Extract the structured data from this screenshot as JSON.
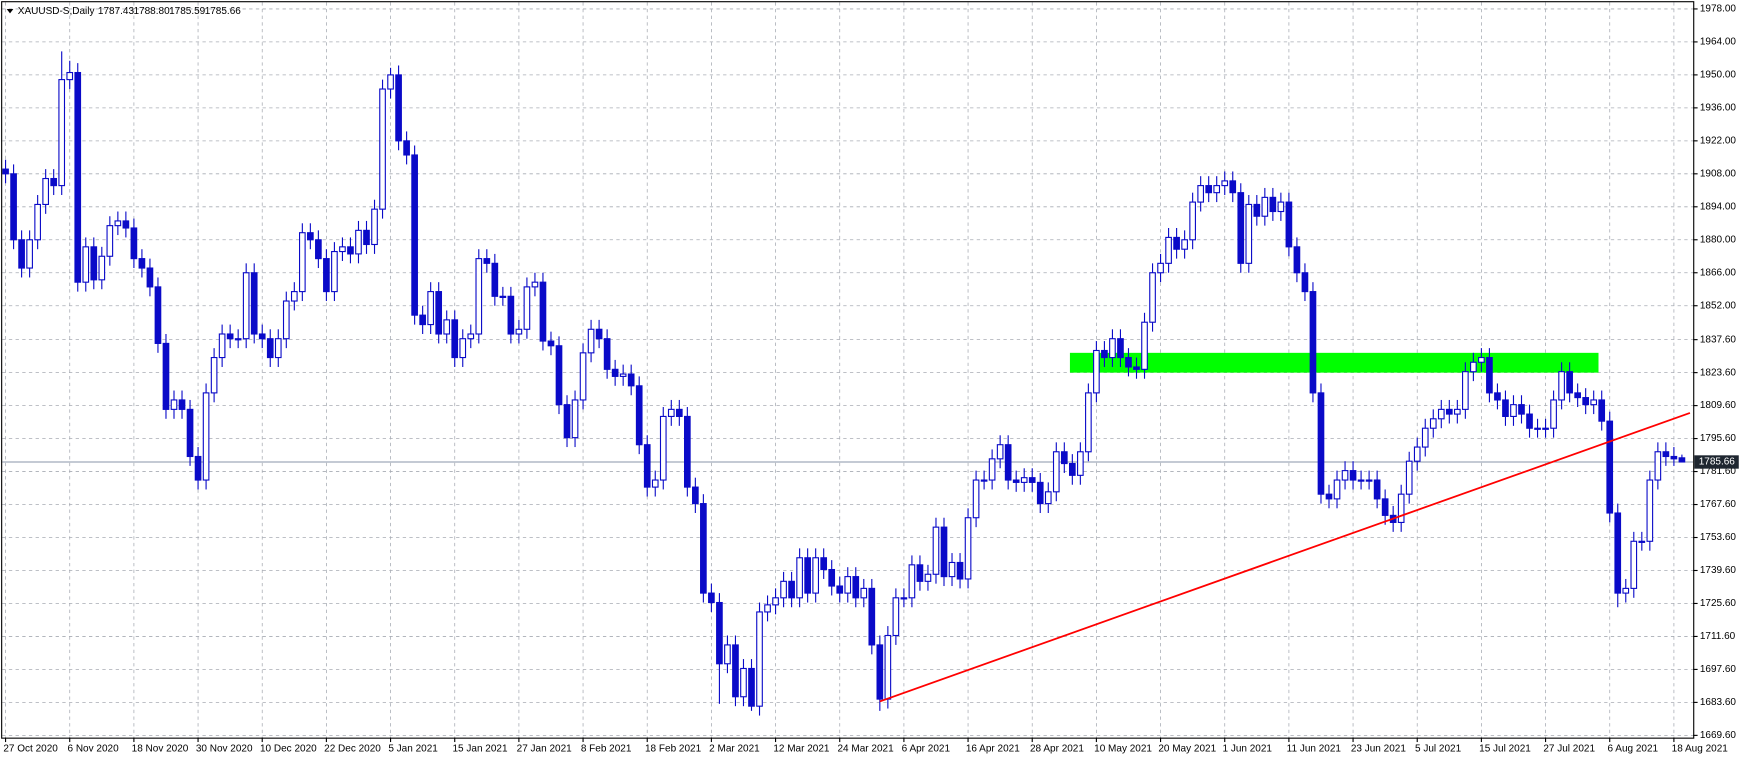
{
  "chart_data": {
    "type": "candlestick",
    "title": "XAUUSD-S,Daily",
    "header_values": [
      "1787.43",
      "1788.80",
      "1785.59",
      "1785.66"
    ],
    "color": "#0a0ac8",
    "up_fill": "#ffffff",
    "grid": true,
    "ylim": [
      1669.6,
      1978
    ],
    "yticks": [
      {
        "value": 1978,
        "label": "1978.00"
      },
      {
        "value": 1964,
        "label": "1964.00"
      },
      {
        "value": 1950,
        "label": "1950.00"
      },
      {
        "value": 1936,
        "label": "1936.00"
      },
      {
        "value": 1922,
        "label": "1922.00"
      },
      {
        "value": 1908,
        "label": "1908.00"
      },
      {
        "value": 1894,
        "label": "1894.00"
      },
      {
        "value": 1880,
        "label": "1880.00"
      },
      {
        "value": 1866,
        "label": "1866.00"
      },
      {
        "value": 1852,
        "label": "1852.00"
      },
      {
        "value": 1837.6,
        "label": "1837.60"
      },
      {
        "value": 1823.6,
        "label": "1823.60"
      },
      {
        "value": 1809.6,
        "label": "1809.60"
      },
      {
        "value": 1795.6,
        "label": "1795.60"
      },
      {
        "value": 1781.6,
        "label": "1781.60"
      },
      {
        "value": 1767.6,
        "label": "1767.60"
      },
      {
        "value": 1753.6,
        "label": "1753.60"
      },
      {
        "value": 1739.6,
        "label": "1739.60"
      },
      {
        "value": 1725.6,
        "label": "1725.60"
      },
      {
        "value": 1711.6,
        "label": "1711.60"
      },
      {
        "value": 1697.6,
        "label": "1697.60"
      },
      {
        "value": 1683.6,
        "label": "1683.60"
      },
      {
        "value": 1669.6,
        "label": "1669.60"
      }
    ],
    "categories": [
      "27 Oct 2020",
      null,
      null,
      null,
      null,
      null,
      null,
      null,
      "6 Nov 2020",
      null,
      null,
      null,
      null,
      null,
      null,
      null,
      "18 Nov 2020",
      null,
      null,
      null,
      null,
      null,
      null,
      null,
      "30 Nov 2020",
      null,
      null,
      null,
      null,
      null,
      null,
      null,
      "10 Dec 2020",
      null,
      null,
      null,
      null,
      null,
      null,
      null,
      "22 Dec 2020",
      null,
      null,
      null,
      null,
      null,
      null,
      null,
      "5 Jan 2021",
      null,
      null,
      null,
      null,
      null,
      null,
      null,
      "15 Jan 2021",
      null,
      null,
      null,
      null,
      null,
      null,
      null,
      "27 Jan 2021",
      null,
      null,
      null,
      null,
      null,
      null,
      null,
      "8 Feb 2021",
      null,
      null,
      null,
      null,
      null,
      null,
      null,
      "18 Feb 2021",
      null,
      null,
      null,
      null,
      null,
      null,
      null,
      "2 Mar 2021",
      null,
      null,
      null,
      null,
      null,
      null,
      null,
      "12 Mar 2021",
      null,
      null,
      null,
      null,
      null,
      null,
      null,
      "24 Mar 2021",
      null,
      null,
      null,
      null,
      null,
      null,
      null,
      "6 Apr 2021",
      null,
      null,
      null,
      null,
      null,
      null,
      null,
      "16 Apr 2021",
      null,
      null,
      null,
      null,
      null,
      null,
      null,
      "28 Apr 2021",
      null,
      null,
      null,
      null,
      null,
      null,
      null,
      "10 May 2021",
      null,
      null,
      null,
      null,
      null,
      null,
      null,
      "20 May 2021",
      null,
      null,
      null,
      null,
      null,
      null,
      null,
      "1 Jun 2021",
      null,
      null,
      null,
      null,
      null,
      null,
      null,
      "11 Jun 2021",
      null,
      null,
      null,
      null,
      null,
      null,
      null,
      "23 Jun 2021",
      null,
      null,
      null,
      null,
      null,
      null,
      null,
      "5 Jul 2021",
      null,
      null,
      null,
      null,
      null,
      null,
      null,
      "15 Jul 2021",
      null,
      null,
      null,
      null,
      null,
      null,
      null,
      "27 Jul 2021",
      null,
      null,
      null,
      null,
      null,
      null,
      null,
      "6 Aug 2021",
      null,
      null,
      null,
      null,
      null,
      null,
      null,
      "18 Aug 2021",
      null
    ],
    "open": [
      1910,
      1908,
      1880,
      1868,
      1880,
      1895,
      1906,
      1903,
      1948,
      1951,
      1862,
      1877,
      1863,
      1873,
      1886,
      1888,
      1885,
      1872,
      1868,
      1860,
      1836,
      1808,
      1812,
      1808,
      1788,
      1778,
      1815,
      1830,
      1840,
      1838,
      1838,
      1866,
      1840,
      1838,
      1830,
      1838,
      1854,
      1858,
      1883,
      1880,
      1872,
      1858,
      1875,
      1877,
      1874,
      1884,
      1878,
      1893,
      1944,
      1950,
      1922,
      1916,
      1848,
      1844,
      1858,
      1840,
      1846,
      1830,
      1838,
      1840,
      1872,
      1870,
      1856,
      1856,
      1840,
      1842,
      1860,
      1862,
      1837,
      1835,
      1810,
      1796,
      1812,
      1832,
      1842,
      1838,
      1825,
      1822,
      1823,
      1818,
      1793,
      1775,
      1778,
      1805,
      1808,
      1805,
      1775,
      1768,
      1730,
      1726,
      1700,
      1708,
      1686,
      1698,
      1682,
      1722,
      1725,
      1728,
      1735,
      1728,
      1745,
      1730,
      1745,
      1740,
      1733,
      1730,
      1737,
      1728,
      1732,
      1708,
      1685,
      1712,
      1728,
      1728,
      1742,
      1735,
      1738,
      1758,
      1737,
      1743,
      1736,
      1762,
      1778,
      1778,
      1787,
      1793,
      1778,
      1777,
      1779,
      1777,
      1768,
      1773,
      1790,
      1785,
      1780,
      1790,
      1815,
      1833,
      1830,
      1838,
      1830,
      1826,
      1825,
      1845,
      1866,
      1870,
      1881,
      1876,
      1880,
      1896,
      1903,
      1900,
      1903,
      1905,
      1900,
      1870,
      1895,
      1890,
      1898,
      1892,
      1896,
      1877,
      1866,
      1858,
      1815,
      1772,
      1770,
      1778,
      1782,
      1778,
      1778,
      1778,
      1770,
      1763,
      1760,
      1772,
      1786,
      1792,
      1800,
      1804,
      1808,
      1806,
      1808,
      1824,
      1828,
      1830,
      1815,
      1812,
      1805,
      1810,
      1806,
      1800,
      1800,
      1800,
      1812,
      1824,
      1815,
      1813,
      1810,
      1812,
      1803,
      1764,
      1730,
      1732,
      1752,
      1752,
      1778,
      1790,
      1788,
      1787.43
    ],
    "high": [
      1914,
      1912,
      1884,
      1884,
      1899,
      1910,
      1910,
      1960,
      1956,
      1955,
      1881,
      1881,
      1877,
      1890,
      1892,
      1892,
      1889,
      1876,
      1872,
      1864,
      1840,
      1816,
      1816,
      1812,
      1792,
      1819,
      1834,
      1844,
      1844,
      1842,
      1870,
      1870,
      1844,
      1842,
      1842,
      1858,
      1862,
      1887,
      1887,
      1884,
      1876,
      1879,
      1881,
      1881,
      1888,
      1888,
      1897,
      1948,
      1953,
      1954,
      1926,
      1920,
      1852,
      1862,
      1862,
      1850,
      1850,
      1842,
      1844,
      1876,
      1876,
      1874,
      1860,
      1860,
      1846,
      1864,
      1866,
      1866,
      1841,
      1839,
      1814,
      1816,
      1836,
      1846,
      1846,
      1842,
      1829,
      1827,
      1827,
      1822,
      1797,
      1782,
      1809,
      1812,
      1812,
      1809,
      1779,
      1772,
      1734,
      1730,
      1712,
      1712,
      1702,
      1702,
      1726,
      1729,
      1732,
      1739,
      1739,
      1749,
      1749,
      1749,
      1749,
      1744,
      1737,
      1741,
      1741,
      1736,
      1736,
      1712,
      1716,
      1732,
      1732,
      1746,
      1746,
      1742,
      1762,
      1762,
      1747,
      1747,
      1766,
      1782,
      1782,
      1791,
      1797,
      1797,
      1782,
      1783,
      1783,
      1781,
      1777,
      1794,
      1794,
      1789,
      1794,
      1819,
      1837,
      1837,
      1842,
      1842,
      1834,
      1830,
      1849,
      1870,
      1874,
      1885,
      1885,
      1884,
      1900,
      1907,
      1907,
      1907,
      1909,
      1909,
      1904,
      1899,
      1899,
      1902,
      1902,
      1900,
      1900,
      1881,
      1870,
      1862,
      1819,
      1776,
      1782,
      1786,
      1786,
      1782,
      1782,
      1782,
      1774,
      1767,
      1776,
      1790,
      1796,
      1804,
      1808,
      1812,
      1812,
      1812,
      1828,
      1832,
      1834,
      1834,
      1819,
      1816,
      1814,
      1814,
      1810,
      1804,
      1804,
      1816,
      1828,
      1828,
      1819,
      1817,
      1816,
      1816,
      1807,
      1768,
      1736,
      1756,
      1756,
      1782,
      1794,
      1794,
      1792,
      1788.8
    ],
    "low": [
      1904,
      1876,
      1864,
      1864,
      1876,
      1891,
      1899,
      1899,
      1944,
      1858,
      1858,
      1859,
      1859,
      1869,
      1882,
      1881,
      1868,
      1864,
      1856,
      1832,
      1804,
      1804,
      1804,
      1784,
      1774,
      1774,
      1811,
      1826,
      1834,
      1834,
      1834,
      1836,
      1834,
      1826,
      1826,
      1834,
      1850,
      1854,
      1876,
      1868,
      1854,
      1854,
      1871,
      1870,
      1870,
      1874,
      1874,
      1889,
      1940,
      1918,
      1912,
      1844,
      1840,
      1840,
      1836,
      1836,
      1826,
      1826,
      1834,
      1836,
      1866,
      1852,
      1852,
      1836,
      1836,
      1838,
      1856,
      1833,
      1831,
      1806,
      1792,
      1792,
      1808,
      1828,
      1834,
      1821,
      1818,
      1818,
      1814,
      1789,
      1771,
      1771,
      1774,
      1801,
      1801,
      1771,
      1764,
      1726,
      1722,
      1683,
      1696,
      1682,
      1682,
      1680,
      1678,
      1718,
      1721,
      1724,
      1724,
      1724,
      1726,
      1726,
      1736,
      1729,
      1726,
      1726,
      1724,
      1724,
      1704,
      1680,
      1681,
      1708,
      1724,
      1724,
      1731,
      1731,
      1734,
      1733,
      1733,
      1732,
      1732,
      1758,
      1774,
      1774,
      1783,
      1774,
      1773,
      1773,
      1773,
      1764,
      1764,
      1769,
      1781,
      1776,
      1776,
      1786,
      1811,
      1826,
      1826,
      1826,
      1822,
      1821,
      1821,
      1841,
      1862,
      1866,
      1872,
      1872,
      1876,
      1892,
      1896,
      1896,
      1899,
      1896,
      1866,
      1866,
      1886,
      1886,
      1888,
      1888,
      1873,
      1862,
      1854,
      1811,
      1768,
      1766,
      1766,
      1774,
      1774,
      1774,
      1774,
      1766,
      1759,
      1756,
      1756,
      1768,
      1782,
      1788,
      1796,
      1800,
      1802,
      1802,
      1804,
      1820,
      1824,
      1811,
      1808,
      1801,
      1801,
      1802,
      1796,
      1796,
      1796,
      1796,
      1808,
      1811,
      1809,
      1806,
      1806,
      1799,
      1760,
      1724,
      1726,
      1728,
      1748,
      1748,
      1774,
      1784,
      1784,
      1785.59
    ],
    "close": [
      1908,
      1880,
      1868,
      1880,
      1895,
      1906,
      1903,
      1948,
      1951,
      1862,
      1877,
      1863,
      1873,
      1886,
      1888,
      1885,
      1872,
      1868,
      1860,
      1836,
      1808,
      1812,
      1808,
      1788,
      1778,
      1815,
      1830,
      1840,
      1838,
      1838,
      1866,
      1840,
      1838,
      1830,
      1838,
      1854,
      1858,
      1883,
      1880,
      1872,
      1858,
      1875,
      1877,
      1874,
      1884,
      1878,
      1893,
      1944,
      1950,
      1922,
      1916,
      1848,
      1844,
      1858,
      1840,
      1846,
      1830,
      1838,
      1840,
      1872,
      1870,
      1856,
      1856,
      1840,
      1842,
      1860,
      1862,
      1837,
      1835,
      1810,
      1796,
      1812,
      1832,
      1842,
      1838,
      1825,
      1822,
      1823,
      1818,
      1793,
      1775,
      1778,
      1805,
      1808,
      1805,
      1775,
      1768,
      1730,
      1726,
      1700,
      1708,
      1686,
      1698,
      1682,
      1722,
      1725,
      1728,
      1735,
      1728,
      1745,
      1730,
      1745,
      1740,
      1733,
      1730,
      1737,
      1728,
      1732,
      1708,
      1685,
      1712,
      1728,
      1728,
      1742,
      1735,
      1738,
      1758,
      1737,
      1743,
      1736,
      1762,
      1778,
      1778,
      1787,
      1793,
      1778,
      1777,
      1779,
      1777,
      1768,
      1773,
      1790,
      1785,
      1780,
      1790,
      1815,
      1833,
      1830,
      1838,
      1830,
      1826,
      1825,
      1845,
      1866,
      1870,
      1881,
      1876,
      1880,
      1896,
      1903,
      1900,
      1903,
      1905,
      1900,
      1870,
      1895,
      1890,
      1898,
      1892,
      1896,
      1877,
      1866,
      1858,
      1815,
      1772,
      1770,
      1778,
      1782,
      1778,
      1778,
      1778,
      1770,
      1763,
      1760,
      1772,
      1786,
      1792,
      1800,
      1804,
      1808,
      1806,
      1808,
      1824,
      1828,
      1830,
      1815,
      1812,
      1805,
      1810,
      1806,
      1800,
      1800,
      1800,
      1812,
      1824,
      1815,
      1813,
      1810,
      1812,
      1803,
      1764,
      1730,
      1732,
      1752,
      1752,
      1778,
      1790,
      1788,
      1787,
      1785.66
    ],
    "trendline": {
      "x": [
        109,
        210
      ],
      "y": [
        1684,
        1806.5
      ],
      "color": "#ff0000"
    },
    "zone": {
      "x": [
        132.7,
        198.6
      ],
      "y": [
        1823.6,
        1832
      ],
      "color": "#00ff00"
    }
  }
}
